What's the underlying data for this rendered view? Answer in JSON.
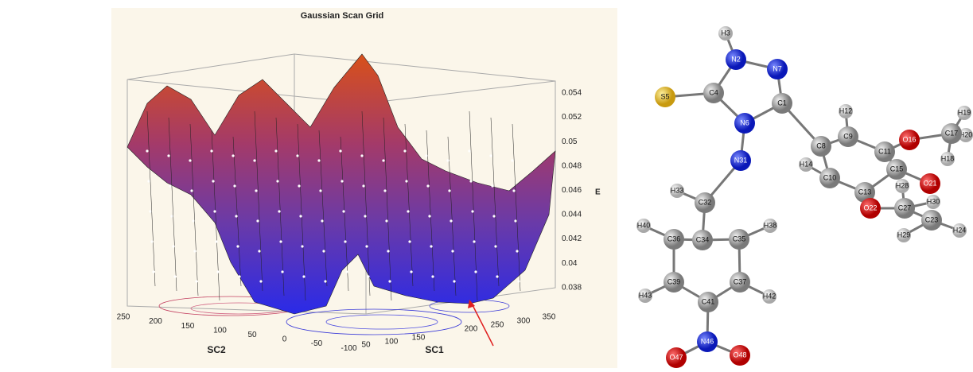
{
  "plot": {
    "title": "Gaussian Scan Grid",
    "e_label": "E",
    "e_ticks": [
      "0.054",
      "0.052",
      "0.05",
      "0.048",
      "0.046",
      "0.044",
      "0.042",
      "0.04",
      "0.038"
    ],
    "sc1_label": "SC1",
    "sc1_ticks": [
      "50",
      "100",
      "150",
      "200",
      "250",
      "300",
      "350"
    ],
    "sc2_label": "SC2",
    "sc2_ticks": [
      "250",
      "200",
      "150",
      "100",
      "50",
      "0",
      "-50",
      "-100"
    ]
  },
  "molecule": {
    "atoms": [
      "H3",
      "N2",
      "N7",
      "S5",
      "C4",
      "C1",
      "N6",
      "H12",
      "C9",
      "O16",
      "H19",
      "H20",
      "C17",
      "H18",
      "C8",
      "C11",
      "C10",
      "H14",
      "C13",
      "C15",
      "O21",
      "H28",
      "O22",
      "C27",
      "H30",
      "C23",
      "H24",
      "H29",
      "N31",
      "H33",
      "C32",
      "C34",
      "H40",
      "C36",
      "C35",
      "H38",
      "C39",
      "C37",
      "H43",
      "H42",
      "C41",
      "N46",
      "O47",
      "O48"
    ]
  }
}
